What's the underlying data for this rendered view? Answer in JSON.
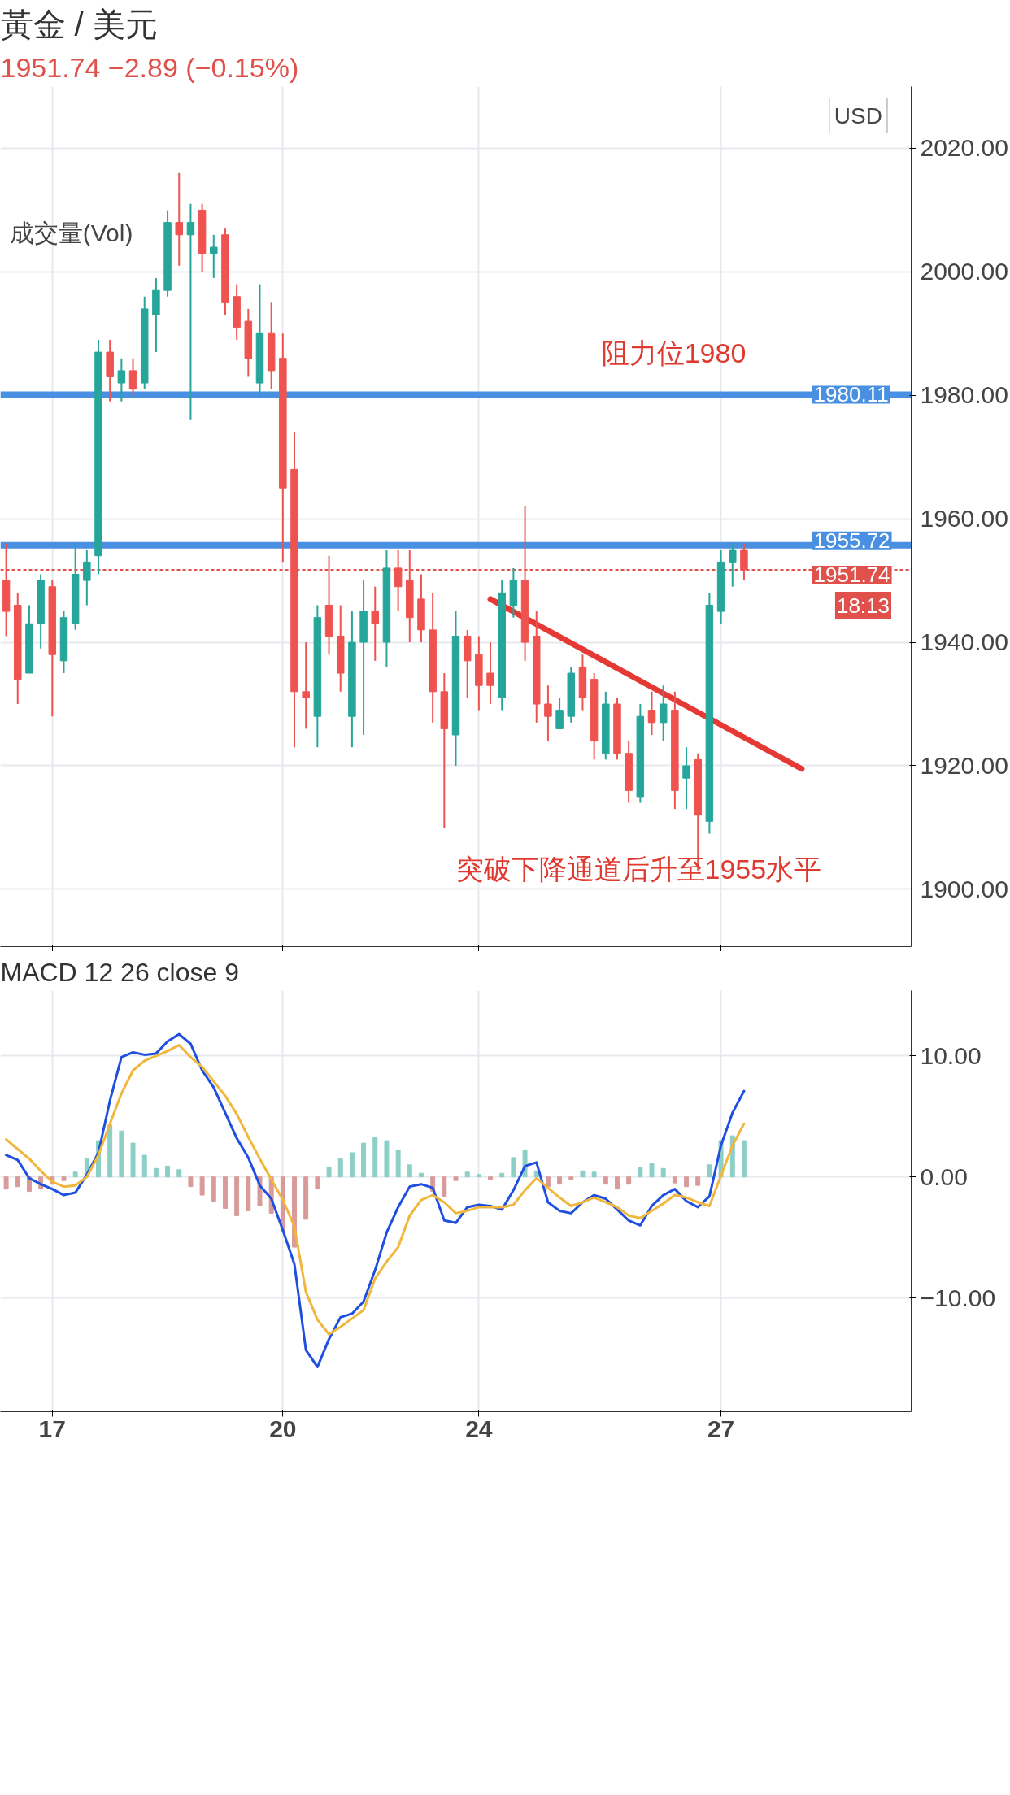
{
  "chart_data": [
    {
      "type": "candlestick",
      "title": "黃金 / 美元",
      "subtitle": "1951.74 −2.89 (−0.15%)",
      "categories": [
        null,
        null,
        null,
        null,
        "17",
        null,
        null,
        null,
        null,
        null,
        null,
        null,
        null,
        null,
        null,
        null,
        null,
        null,
        null,
        null,
        null,
        null,
        null,
        null,
        "20",
        null,
        null,
        null,
        null,
        null,
        null,
        null,
        null,
        null,
        null,
        null,
        null,
        null,
        null,
        null,
        null,
        "24",
        null,
        null,
        null,
        null,
        null,
        null,
        null,
        null,
        null,
        null,
        null,
        null,
        null,
        null,
        null,
        null,
        null,
        null,
        null,
        null,
        "27",
        null,
        null,
        null,
        null,
        null,
        null,
        null
      ],
      "ohlc": [
        [
          1950,
          1956,
          1941,
          1945
        ],
        [
          1946,
          1948,
          1930,
          1934
        ],
        [
          1935,
          1946,
          1935,
          1943
        ],
        [
          1943,
          1951,
          1939,
          1950
        ],
        [
          1949,
          1950,
          1928,
          1938
        ],
        [
          1937,
          1945,
          1935,
          1944
        ],
        [
          1943,
          1956,
          1942,
          1951
        ],
        [
          1950,
          1955,
          1946,
          1953
        ],
        [
          1954,
          1989,
          1951,
          1987
        ],
        [
          1987,
          1989,
          1979,
          1983
        ],
        [
          1982,
          1986,
          1979,
          1984
        ],
        [
          1984,
          1986,
          1980,
          1981
        ],
        [
          1982,
          1996,
          1981,
          1994
        ],
        [
          1993,
          1999,
          1987,
          1997
        ],
        [
          1997,
          2010,
          1996,
          2008
        ],
        [
          2008,
          2016,
          2001,
          2006
        ],
        [
          2006,
          2011,
          1976,
          2008
        ],
        [
          2010,
          2011,
          2000,
          2003
        ],
        [
          2003,
          2006,
          1999,
          2004
        ],
        [
          2006,
          2007,
          1993,
          1995
        ],
        [
          1996,
          1998,
          1989,
          1991
        ],
        [
          1992,
          1994,
          1983,
          1986
        ],
        [
          1982,
          1998,
          1980,
          1990
        ],
        [
          1990,
          1995,
          1981,
          1984
        ],
        [
          1986,
          1990,
          1953,
          1965
        ],
        [
          1968,
          1974,
          1923,
          1932
        ],
        [
          1932,
          1940,
          1926,
          1931
        ],
        [
          1928,
          1946,
          1923,
          1944
        ],
        [
          1946,
          1954,
          1938,
          1941
        ],
        [
          1941,
          1946,
          1932,
          1935
        ],
        [
          1928,
          1945,
          1923,
          1940
        ],
        [
          1940,
          1950,
          1925,
          1945
        ],
        [
          1945,
          1949,
          1937,
          1943
        ],
        [
          1940,
          1955,
          1936,
          1952
        ],
        [
          1952,
          1955,
          1945,
          1949
        ],
        [
          1950,
          1955,
          1940,
          1944
        ],
        [
          1947,
          1951,
          1940,
          1942
        ],
        [
          1942,
          1948,
          1927,
          1932
        ],
        [
          1932,
          1935,
          1910,
          1926
        ],
        [
          1925,
          1945,
          1920,
          1941
        ],
        [
          1941,
          1942,
          1931,
          1937
        ],
        [
          1938,
          1941,
          1929,
          1933
        ],
        [
          1935,
          1940,
          1930,
          1933
        ],
        [
          1931,
          1950,
          1929,
          1948
        ],
        [
          1946,
          1952,
          1944,
          1950
        ],
        [
          1950,
          1962,
          1937,
          1940
        ],
        [
          1941,
          1945,
          1927,
          1930
        ],
        [
          1930,
          1933,
          1924,
          1928
        ],
        [
          1926,
          1931,
          1926,
          1929
        ],
        [
          1928,
          1936,
          1927,
          1935
        ],
        [
          1936,
          1938,
          1929,
          1931
        ],
        [
          1934,
          1935,
          1921,
          1924
        ],
        [
          1922,
          1932,
          1921,
          1930
        ],
        [
          1930,
          1931,
          1921,
          1922
        ],
        [
          1922,
          1924,
          1914,
          1916
        ],
        [
          1915,
          1930,
          1914,
          1928
        ],
        [
          1929,
          1932,
          1925,
          1927
        ],
        [
          1927,
          1933,
          1924,
          1930
        ],
        [
          1929,
          1932,
          1913,
          1916
        ],
        [
          1918,
          1923,
          1913,
          1920
        ],
        [
          1921,
          1922,
          1903,
          1912
        ],
        [
          1911,
          1948,
          1909,
          1946
        ],
        [
          1945,
          1955,
          1943,
          1953
        ],
        [
          1953,
          1956,
          1949,
          1955
        ],
        [
          1955,
          1956,
          1950,
          1951.74
        ],
        null,
        null,
        null,
        null,
        null
      ],
      "series": [
        {
          "type": "line",
          "color": "#e53935",
          "values": [
            null,
            null,
            null,
            null,
            null,
            null,
            null,
            null,
            null,
            null,
            null,
            null,
            null,
            null,
            null,
            null,
            null,
            null,
            null,
            null,
            null,
            null,
            null,
            null,
            null,
            null,
            null,
            null,
            null,
            null,
            null,
            null,
            null,
            null,
            null,
            null,
            null,
            null,
            null,
            null,
            null,
            null,
            1947,
            null,
            null,
            null,
            null,
            null,
            null,
            null,
            null,
            null,
            null,
            null,
            null,
            null,
            null,
            null,
            null,
            null,
            null,
            null,
            null,
            null,
            null,
            null,
            null,
            null,
            null,
            1919.5
          ]
        }
      ],
      "ylim": [
        1890.7,
        2030
      ],
      "yticks": [
        {
          "value": 1900,
          "label": "1900.00"
        },
        {
          "value": 1920,
          "label": "1920.00"
        },
        {
          "value": 1940,
          "label": "1940.00"
        },
        {
          "value": 1960,
          "label": "1960.00"
        },
        {
          "value": 1980,
          "label": "1980.00"
        },
        {
          "value": 2000,
          "label": "2000.00"
        },
        {
          "value": 2020,
          "label": "2020.00"
        }
      ],
      "tick_labels": "y",
      "grid": true,
      "ref_lines": [
        {
          "axis": "y",
          "value": 1980.11,
          "label": "1980.11",
          "color": "#4a90e2"
        },
        {
          "axis": "y",
          "value": 1955.72,
          "label": "1955.72",
          "color": "#4a90e2"
        },
        {
          "axis": "y",
          "value": 1951.74,
          "label": "1951.74",
          "color": "#e0514c",
          "line_style": "dashed"
        }
      ],
      "annotations": [
        "成交量(Vol)",
        "USD",
        "18:13",
        "阻力位1980",
        "突破下降通道后升至1955水平"
      ]
    },
    {
      "type": "line",
      "title": "MACD 12 26 close 9",
      "categories": [
        null,
        null,
        null,
        null,
        "17",
        null,
        null,
        null,
        null,
        null,
        null,
        null,
        null,
        null,
        null,
        null,
        null,
        null,
        null,
        null,
        null,
        null,
        null,
        null,
        "20",
        null,
        null,
        null,
        null,
        null,
        null,
        null,
        null,
        null,
        null,
        null,
        null,
        null,
        null,
        null,
        null,
        "24",
        null,
        null,
        null,
        null,
        null,
        null,
        null,
        null,
        null,
        null,
        null,
        null,
        null,
        null,
        null,
        null,
        null,
        null,
        null,
        null,
        "27",
        null,
        null,
        null,
        null,
        null,
        null,
        null
      ],
      "series": [
        {
          "type": "bar",
          "color": "#8ccfc7",
          "values": [
            null,
            null,
            null,
            null,
            null,
            null,
            0.4,
            1.5,
            3.0,
            4.3,
            3.8,
            2.8,
            1.8,
            0.7,
            0.9,
            0.6,
            null,
            null,
            null,
            null,
            null,
            null,
            null,
            null,
            null,
            null,
            null,
            null,
            0.8,
            1.5,
            2.0,
            2.8,
            3.3,
            3.0,
            2.2,
            1.0,
            0.3,
            null,
            null,
            null,
            0.4,
            0.2,
            null,
            0.3,
            1.6,
            2.2,
            0.5,
            null,
            null,
            null,
            0.5,
            0.4,
            null,
            null,
            null,
            0.8,
            1.1,
            0.7,
            null,
            null,
            null,
            1.0,
            3.0,
            3.4,
            3.0,
            null,
            null,
            null,
            null,
            null
          ]
        },
        {
          "type": "bar",
          "color": "#d99a9a",
          "values": [
            -1.0,
            -0.8,
            -1.2,
            -1.0,
            -0.6,
            -0.3,
            null,
            null,
            null,
            null,
            null,
            null,
            null,
            null,
            null,
            null,
            -0.8,
            -1.5,
            -2.0,
            -2.6,
            -3.2,
            -2.8,
            -2.4,
            -3.0,
            -4.5,
            -5.8,
            -3.5,
            -1.0,
            null,
            null,
            null,
            null,
            null,
            null,
            null,
            null,
            null,
            -1.2,
            -1.6,
            -0.3,
            null,
            null,
            -0.2,
            null,
            null,
            null,
            null,
            -0.8,
            -0.6,
            -0.2,
            null,
            null,
            -0.6,
            -1.0,
            -0.6,
            null,
            null,
            null,
            -0.5,
            -0.8,
            -0.7,
            null,
            null,
            null,
            null,
            null,
            null,
            null,
            null,
            null
          ]
        },
        {
          "color": "#1f4fe0",
          "values": [
            1.8,
            1.4,
            -0.1,
            -0.6,
            -1.0,
            -1.5,
            -1.3,
            0.2,
            2.0,
            6.3,
            9.9,
            10.3,
            10.1,
            10.2,
            11.2,
            11.8,
            11.0,
            8.8,
            7.4,
            5.3,
            3.2,
            1.6,
            -0.7,
            -1.8,
            -4.4,
            -7.2,
            -14.3,
            -15.7,
            -13.4,
            -11.6,
            -11.3,
            -10.3,
            -7.7,
            -4.6,
            -2.5,
            -0.8,
            -0.6,
            -0.9,
            -3.6,
            -3.8,
            -2.5,
            -2.3,
            -2.4,
            -2.7,
            -1.1,
            0.9,
            1.2,
            -2.1,
            -2.8,
            -3.0,
            -2.1,
            -1.5,
            -1.8,
            -2.7,
            -3.6,
            -4.0,
            -2.4,
            -1.5,
            -1.0,
            -2.0,
            -2.5,
            -1.6,
            2.6,
            5.3,
            7.1,
            null,
            null,
            null,
            null,
            null
          ]
        },
        {
          "color": "#f0b73c",
          "values": [
            3.1,
            2.3,
            1.5,
            0.5,
            -0.4,
            -0.8,
            -0.7,
            0.0,
            1.8,
            4.4,
            6.9,
            8.8,
            9.6,
            10.0,
            10.4,
            10.9,
            9.9,
            9.1,
            7.9,
            6.7,
            5.2,
            3.3,
            1.5,
            -0.2,
            -1.9,
            -4.1,
            -9.5,
            -11.8,
            -13.0,
            -12.4,
            -11.7,
            -11.0,
            -8.4,
            -7.0,
            -5.8,
            -3.2,
            -1.9,
            -1.5,
            -2.1,
            -3.0,
            -2.8,
            -2.5,
            -2.5,
            -2.5,
            -2.3,
            -1.1,
            -0.1,
            -0.9,
            -1.7,
            -2.4,
            -2.1,
            -1.7,
            -2.1,
            -2.5,
            -3.2,
            -3.4,
            -2.8,
            -2.2,
            -1.5,
            -1.7,
            -2.1,
            -2.4,
            0.1,
            2.6,
            4.4,
            null,
            null,
            null,
            null,
            null
          ]
        }
      ],
      "ylim": [
        -19.4,
        15.4
      ],
      "yticks": [
        {
          "value": -10,
          "label": "−10.00"
        },
        {
          "value": 0,
          "label": "0.00"
        },
        {
          "value": 10,
          "label": "10.00"
        }
      ],
      "grid": true
    }
  ]
}
